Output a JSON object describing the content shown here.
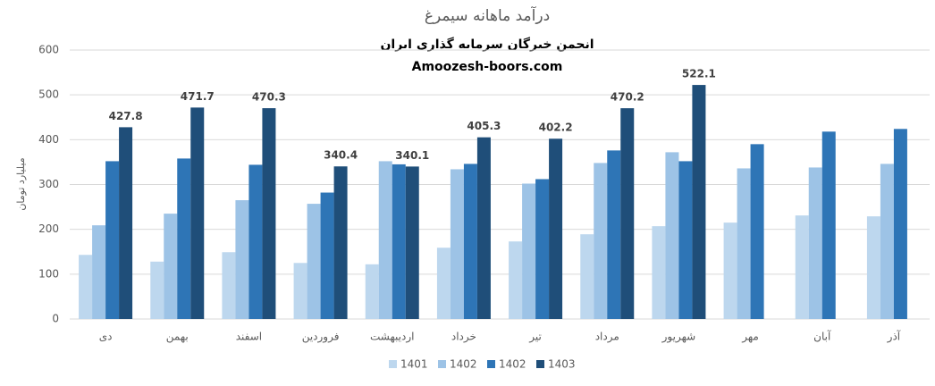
{
  "chart_data": {
    "type": "bar",
    "title": "درآمد ماهانه سیمرغ",
    "subtitle": "انجمن خبرگان سرمایه گذاری ایران",
    "annotation": "Amoozesh-boors.com",
    "y_label": "میلیارد تومان",
    "categories": [
      "دی",
      "بهمن",
      "اسفند",
      "فروردین",
      "اردیبهشت",
      "خرداد",
      "تیر",
      "مرداد",
      "شهریور",
      "مهر",
      "آبان",
      "آذر"
    ],
    "series": [
      {
        "name": "1401",
        "color": "#bdd7ee",
        "values": [
          143,
          128,
          149,
          125,
          122,
          159,
          173,
          189,
          207,
          215,
          231,
          229
        ]
      },
      {
        "name": "1402",
        "color": "#9dc3e6",
        "values": [
          209,
          235,
          265,
          257,
          352,
          334,
          302,
          348,
          372,
          336,
          338,
          346
        ]
      },
      {
        "name": "1402",
        "color": "#2e75b6",
        "values": [
          352,
          358,
          344,
          282,
          345,
          346,
          312,
          376,
          352,
          390,
          418,
          424
        ]
      },
      {
        "name": "1403",
        "color": "#1f4e79",
        "values": [
          427.8,
          471.7,
          470.3,
          340.4,
          340.1,
          405.3,
          402.2,
          470.2,
          522.1,
          null,
          null,
          null
        ],
        "show_labels": true
      }
    ],
    "ylim": [
      0,
      600
    ],
    "yticks": [
      0,
      100,
      200,
      300,
      400,
      500,
      600
    ],
    "grid": true,
    "legend": "bottom"
  }
}
